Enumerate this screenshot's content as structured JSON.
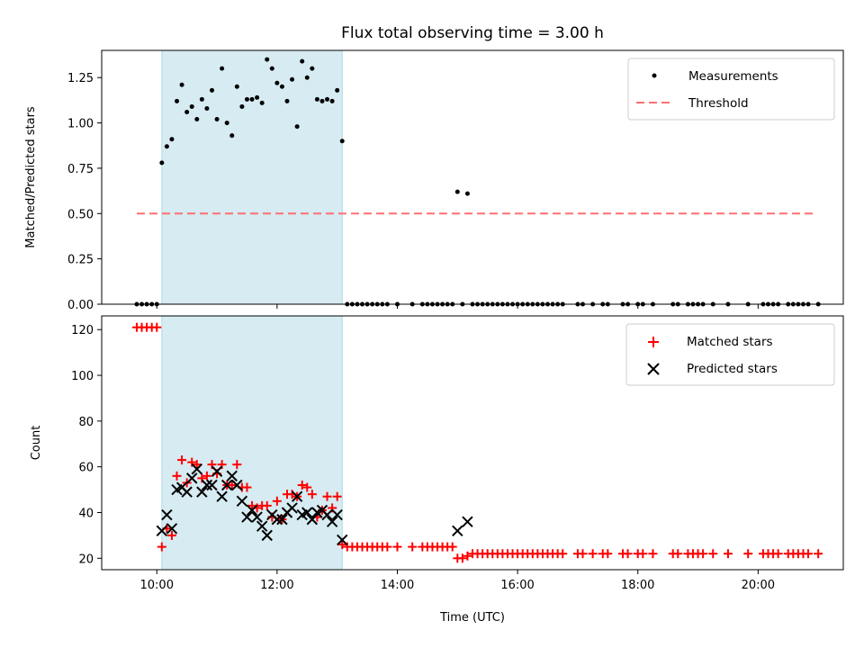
{
  "figure": {
    "title": "Flux total observing time = 3.00 h",
    "xlabel": "Time (UTC)",
    "shaded_interval": [
      "10:05",
      "13:05"
    ],
    "shade_color": "#add8e6"
  },
  "chart_data": [
    {
      "type": "scatter",
      "title": "Flux total observing time = 3.00 h",
      "xlabel": "",
      "ylabel": "Matched/Predicted stars",
      "ylim": [
        0,
        1.4
      ],
      "xlim": [
        "09:05",
        "21:25"
      ],
      "yticks": [
        "0.00",
        "0.25",
        "0.50",
        "0.75",
        "1.00",
        "1.25"
      ],
      "legend_position": "top-right",
      "series": [
        {
          "name": "Measurements",
          "marker": "dot",
          "color": "#000000",
          "x": [
            "09:40",
            "09:45",
            "09:50",
            "09:55",
            "10:00",
            "10:05",
            "10:10",
            "10:15",
            "10:20",
            "10:25",
            "10:30",
            "10:35",
            "10:40",
            "10:45",
            "10:50",
            "10:55",
            "11:00",
            "11:05",
            "11:10",
            "11:15",
            "11:20",
            "11:25",
            "11:30",
            "11:35",
            "11:40",
            "11:45",
            "11:50",
            "11:55",
            "12:00",
            "12:05",
            "12:10",
            "12:15",
            "12:20",
            "12:25",
            "12:30",
            "12:35",
            "12:40",
            "12:45",
            "12:50",
            "12:55",
            "13:00",
            "13:05",
            "13:10",
            "13:15",
            "13:20",
            "13:25",
            "13:30",
            "13:35",
            "13:40",
            "13:45",
            "13:50",
            "14:00",
            "14:15",
            "14:25",
            "14:30",
            "14:35",
            "14:40",
            "14:45",
            "14:50",
            "14:55",
            "15:00",
            "15:05",
            "15:10",
            "15:15",
            "15:20",
            "15:25",
            "15:30",
            "15:35",
            "15:40",
            "15:45",
            "15:50",
            "15:55",
            "16:00",
            "16:05",
            "16:10",
            "16:15",
            "16:20",
            "16:25",
            "16:30",
            "16:35",
            "16:40",
            "16:45",
            "17:00",
            "17:05",
            "17:15",
            "17:25",
            "17:30",
            "17:45",
            "17:50",
            "18:00",
            "18:05",
            "18:15",
            "18:35",
            "18:40",
            "18:50",
            "18:55",
            "19:00",
            "19:05",
            "19:15",
            "19:30",
            "19:50",
            "20:05",
            "20:10",
            "20:15",
            "20:20",
            "20:30",
            "20:35",
            "20:40",
            "20:45",
            "20:50",
            "21:00"
          ],
          "y": [
            0,
            0,
            0,
            0,
            0,
            0.78,
            0.87,
            0.91,
            1.12,
            1.21,
            1.06,
            1.09,
            1.02,
            1.13,
            1.08,
            1.18,
            1.02,
            1.3,
            1.0,
            0.93,
            1.2,
            1.09,
            1.13,
            1.13,
            1.14,
            1.11,
            1.35,
            1.3,
            1.22,
            1.2,
            1.12,
            1.24,
            0.98,
            1.34,
            1.25,
            1.3,
            1.13,
            1.12,
            1.13,
            1.12,
            1.18,
            0.9,
            0,
            0,
            0,
            0,
            0,
            0,
            0,
            0,
            0,
            0,
            0,
            0,
            0,
            0,
            0,
            0,
            0,
            0,
            0.62,
            0,
            0.61,
            0,
            0,
            0,
            0,
            0,
            0,
            0,
            0,
            0,
            0,
            0,
            0,
            0,
            0,
            0,
            0,
            0,
            0,
            0,
            0,
            0,
            0,
            0,
            0,
            0,
            0,
            0,
            0,
            0,
            0,
            0,
            0,
            0,
            0,
            0,
            0,
            0,
            0,
            0,
            0,
            0,
            0,
            0,
            0,
            0,
            0,
            0,
            0
          ]
        },
        {
          "name": "Threshold",
          "marker": "dashed-line",
          "color": "#ff7070",
          "x": [
            "09:40",
            "20:55"
          ],
          "y": [
            0.5,
            0.5
          ]
        }
      ]
    },
    {
      "type": "scatter",
      "xlabel": "Time (UTC)",
      "ylabel": "Count",
      "ylim": [
        15,
        126
      ],
      "xlim": [
        "09:05",
        "21:25"
      ],
      "xticks": [
        "10:00",
        "12:00",
        "14:00",
        "16:00",
        "18:00",
        "20:00"
      ],
      "yticks": [
        "20",
        "40",
        "60",
        "80",
        "100",
        "120"
      ],
      "legend_position": "top-right",
      "series": [
        {
          "name": "Matched stars",
          "marker": "plus",
          "color": "#ff0000",
          "x": [
            "09:40",
            "09:45",
            "09:50",
            "09:55",
            "10:00",
            "10:05",
            "10:10",
            "10:15",
            "10:20",
            "10:25",
            "10:30",
            "10:35",
            "10:40",
            "10:45",
            "10:50",
            "10:55",
            "11:00",
            "11:05",
            "11:10",
            "11:15",
            "11:20",
            "11:25",
            "11:30",
            "11:35",
            "11:40",
            "11:45",
            "11:50",
            "11:55",
            "12:00",
            "12:05",
            "12:10",
            "12:15",
            "12:20",
            "12:25",
            "12:30",
            "12:35",
            "12:40",
            "12:45",
            "12:50",
            "12:55",
            "13:00",
            "13:05",
            "13:10",
            "13:15",
            "13:20",
            "13:25",
            "13:30",
            "13:35",
            "13:40",
            "13:45",
            "13:50",
            "14:00",
            "14:15",
            "14:25",
            "14:30",
            "14:35",
            "14:40",
            "14:45",
            "14:50",
            "14:55",
            "15:00",
            "15:05",
            "15:10",
            "15:15",
            "15:20",
            "15:25",
            "15:30",
            "15:35",
            "15:40",
            "15:45",
            "15:50",
            "15:55",
            "16:00",
            "16:05",
            "16:10",
            "16:15",
            "16:20",
            "16:25",
            "16:30",
            "16:35",
            "16:40",
            "16:45",
            "17:00",
            "17:05",
            "17:15",
            "17:25",
            "17:30",
            "17:45",
            "17:50",
            "18:00",
            "18:05",
            "18:15",
            "18:35",
            "18:40",
            "18:50",
            "18:55",
            "19:00",
            "19:05",
            "19:15",
            "19:30",
            "19:50",
            "20:05",
            "20:10",
            "20:15",
            "20:20",
            "20:30",
            "20:35",
            "20:40",
            "20:45",
            "20:50",
            "21:00"
          ],
          "y": [
            121,
            121,
            121,
            121,
            121,
            25,
            33,
            30,
            56,
            63,
            53,
            62,
            61,
            55,
            56,
            61,
            57,
            61,
            52,
            52,
            61,
            51,
            51,
            43,
            42,
            43,
            43,
            38,
            45,
            37,
            48,
            48,
            47,
            52,
            51,
            48,
            38,
            41,
            47,
            42,
            47,
            26,
            25,
            25,
            25,
            25,
            25,
            25,
            25,
            25,
            25,
            25,
            25,
            25,
            25,
            25,
            25,
            25,
            25,
            25,
            20,
            20,
            21,
            22,
            22,
            22,
            22,
            22,
            22,
            22,
            22,
            22,
            22,
            22,
            22,
            22,
            22,
            22,
            22,
            22,
            22,
            22,
            22,
            22,
            22,
            22,
            22,
            22,
            22,
            22,
            22,
            22,
            22,
            22,
            22,
            22,
            22,
            22,
            22,
            22,
            22,
            22,
            22,
            22,
            22,
            22,
            22,
            22,
            22,
            22,
            22
          ]
        },
        {
          "name": "Predicted stars",
          "marker": "x",
          "color": "#000000",
          "x": [
            "10:05",
            "10:10",
            "10:15",
            "10:20",
            "10:25",
            "10:30",
            "10:35",
            "10:40",
            "10:45",
            "10:50",
            "10:55",
            "11:00",
            "11:05",
            "11:10",
            "11:15",
            "11:20",
            "11:25",
            "11:30",
            "11:35",
            "11:40",
            "11:45",
            "11:50",
            "11:55",
            "12:00",
            "12:05",
            "12:10",
            "12:15",
            "12:20",
            "12:25",
            "12:30",
            "12:35",
            "12:40",
            "12:45",
            "12:50",
            "12:55",
            "13:00",
            "13:05",
            "15:00",
            "15:10"
          ],
          "y": [
            32,
            39,
            33,
            50,
            51,
            49,
            55,
            59,
            49,
            52,
            52,
            58,
            47,
            52,
            56,
            52,
            45,
            38,
            41,
            38,
            34,
            30,
            39,
            37,
            37,
            40,
            42,
            47,
            39,
            40,
            37,
            40,
            41,
            39,
            36,
            39,
            28,
            32,
            36
          ]
        }
      ]
    }
  ]
}
